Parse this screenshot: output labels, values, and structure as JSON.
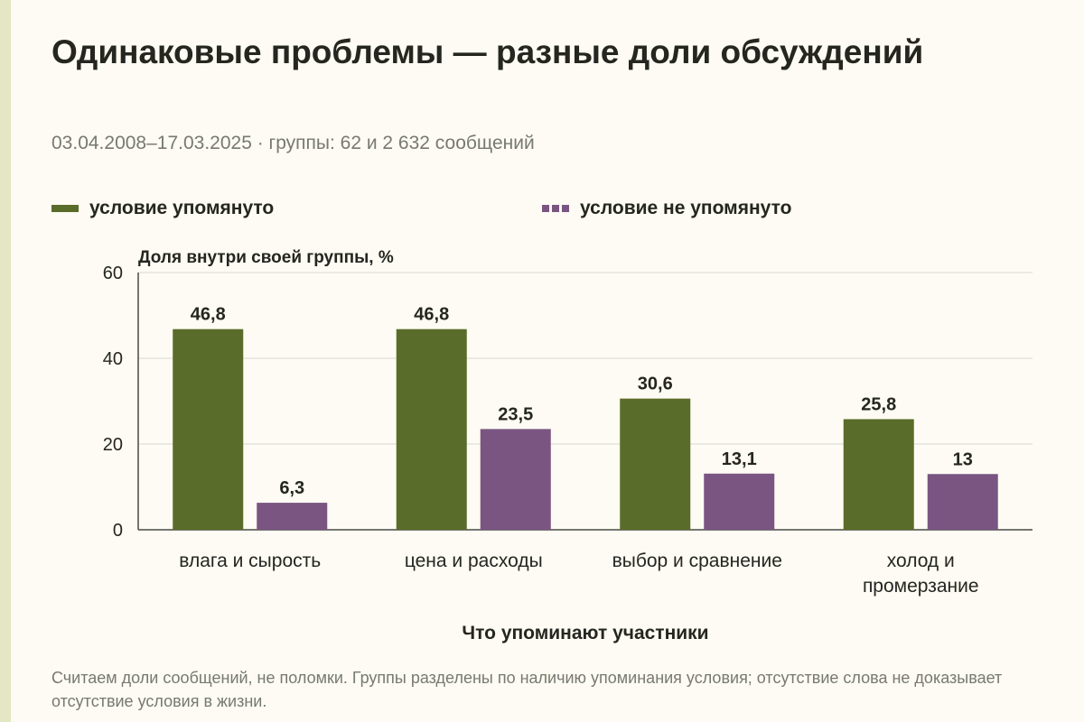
{
  "page": {
    "title": "Одинаковые проблемы — разные доли обсуждений",
    "subtitle": "03.04.2008–17.03.2025 · группы: 62 и 2 632 сообщений",
    "caption": "Считаем доли сообщений, не поломки. Группы разделены по наличию упоминания условия; отсутствие слова не доказывает отсутствие условия в жизни."
  },
  "colors": {
    "background": "#fdfbf3",
    "series_mentioned": "#5a6c29",
    "series_not_mentioned": "#7a5582",
    "grid": "#d9d9d0",
    "axis": "#4a4a44"
  },
  "chart_data": {
    "type": "bar",
    "title": "",
    "xlabel": "Что упоминают участники",
    "ylabel": "Доля внутри своей группы, %",
    "ylim": [
      0,
      60
    ],
    "yticks": [
      0,
      20,
      40,
      60
    ],
    "grid": true,
    "legend_position": "top",
    "categories": [
      [
        "влага и сырость"
      ],
      [
        "цена и расходы"
      ],
      [
        "выбор и сравнение"
      ],
      [
        "холод и",
        "промерзание"
      ]
    ],
    "series": [
      {
        "name": "условие упомянуто",
        "color": "#5a6c29",
        "values": [
          46.8,
          46.8,
          30.6,
          25.8
        ],
        "labels": [
          "46,8",
          "46,8",
          "30,6",
          "25,8"
        ]
      },
      {
        "name": "условие не упомянуто",
        "color": "#7a5582",
        "values": [
          6.3,
          23.5,
          13.1,
          13
        ],
        "labels": [
          "6,3",
          "23,5",
          "13,1",
          "13"
        ]
      }
    ]
  }
}
